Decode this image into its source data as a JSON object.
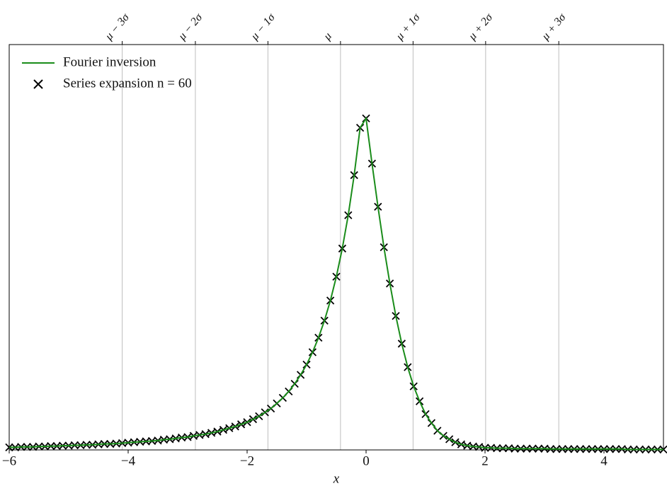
{
  "chart_data": {
    "type": "line_scatter",
    "xlabel": "x",
    "xlim": [
      -6,
      5
    ],
    "ylim": [
      0,
      0.95
    ],
    "xticks": [
      {
        "value": -6,
        "label": "−6"
      },
      {
        "value": -4,
        "label": "−4"
      },
      {
        "value": -2,
        "label": "−2"
      },
      0,
      2,
      4
    ],
    "top_ticks": [
      {
        "value": -4.1,
        "label": "μ − 3σ"
      },
      {
        "value": -2.87,
        "label": "μ − 2σ"
      },
      {
        "value": -1.65,
        "label": "μ − 1σ"
      },
      {
        "value": -0.43,
        "label": "μ"
      },
      {
        "value": 0.79,
        "label": "μ + 1σ"
      },
      {
        "value": 2.01,
        "label": "μ + 2σ"
      },
      {
        "value": 3.24,
        "label": "μ + 3σ"
      }
    ],
    "legend": "upper left",
    "x": [
      -6,
      -5.9,
      -5.8,
      -5.7,
      -5.6,
      -5.5,
      -5.4,
      -5.3,
      -5.2,
      -5.1,
      -5,
      -4.9,
      -4.8,
      -4.7,
      -4.6,
      -4.5,
      -4.4,
      -4.3,
      -4.2,
      -4.1,
      -4,
      -3.9,
      -3.8,
      -3.7,
      -3.6,
      -3.5,
      -3.4,
      -3.3,
      -3.2,
      -3.1,
      -3,
      -2.9,
      -2.8,
      -2.7,
      -2.6,
      -2.5,
      -2.4,
      -2.3,
      -2.2,
      -2.1,
      -2,
      -1.9,
      -1.8,
      -1.7,
      -1.6,
      -1.5,
      -1.4,
      -1.3,
      -1.2,
      -1.1,
      -1,
      -0.9,
      -0.8,
      -0.7,
      -0.6,
      -0.5,
      -0.4,
      -0.3,
      -0.2,
      -0.1,
      0,
      0.1,
      0.2,
      0.3,
      0.4,
      0.5,
      0.6,
      0.7,
      0.8,
      0.9,
      1,
      1.1,
      1.2,
      1.3,
      1.4,
      1.5,
      1.6,
      1.7,
      1.8,
      1.9,
      2,
      2.1,
      2.2,
      2.3,
      2.4,
      2.5,
      2.6,
      2.7,
      2.8,
      2.9,
      3,
      3.1,
      3.2,
      3.3,
      3.4,
      3.5,
      3.6,
      3.7,
      3.8,
      3.9,
      4,
      4.1,
      4.2,
      4.3,
      4.4,
      4.5,
      4.6,
      4.7,
      4.8,
      4.9,
      5
    ],
    "series": [
      {
        "name": "Fourier inversion",
        "kind": "line",
        "color": "#1a8c1a",
        "values": [
          0.006,
          0.006,
          0.007,
          0.007,
          0.007,
          0.008,
          0.008,
          0.009,
          0.009,
          0.01,
          0.01,
          0.011,
          0.011,
          0.012,
          0.012,
          0.013,
          0.014,
          0.014,
          0.015,
          0.016,
          0.017,
          0.018,
          0.019,
          0.02,
          0.021,
          0.022,
          0.024,
          0.025,
          0.027,
          0.029,
          0.03,
          0.033,
          0.035,
          0.037,
          0.04,
          0.043,
          0.047,
          0.051,
          0.055,
          0.06,
          0.065,
          0.072,
          0.079,
          0.088,
          0.097,
          0.109,
          0.122,
          0.137,
          0.155,
          0.176,
          0.2,
          0.229,
          0.263,
          0.303,
          0.35,
          0.406,
          0.472,
          0.55,
          0.644,
          0.755,
          0.777,
          0.671,
          0.57,
          0.475,
          0.39,
          0.314,
          0.249,
          0.194,
          0.149,
          0.114,
          0.084,
          0.063,
          0.045,
          0.033,
          0.025,
          0.018,
          0.013,
          0.01,
          0.008,
          0.007,
          0.005,
          0.005,
          0.004,
          0.004,
          0.004,
          0.003,
          0.003,
          0.003,
          0.003,
          0.003,
          0.003,
          0.002,
          0.002,
          0.002,
          0.002,
          0.002,
          0.002,
          0.002,
          0.002,
          0.002,
          0.002,
          0.002,
          0.002,
          0.002,
          0.001,
          0.001,
          0.001,
          0.001,
          0.001,
          0.001,
          0.001
        ]
      },
      {
        "name": "Series expansion n = 60",
        "kind": "scatter",
        "color": "#000000",
        "values": [
          0.006,
          0.006,
          0.007,
          0.007,
          0.007,
          0.008,
          0.008,
          0.009,
          0.009,
          0.01,
          0.01,
          0.011,
          0.011,
          0.012,
          0.012,
          0.013,
          0.014,
          0.014,
          0.015,
          0.016,
          0.017,
          0.018,
          0.019,
          0.02,
          0.021,
          0.022,
          0.024,
          0.025,
          0.027,
          0.029,
          0.03,
          0.033,
          0.035,
          0.037,
          0.04,
          0.043,
          0.047,
          0.051,
          0.055,
          0.06,
          0.065,
          0.072,
          0.079,
          0.088,
          0.097,
          0.109,
          0.122,
          0.137,
          0.155,
          0.176,
          0.2,
          0.229,
          0.263,
          0.303,
          0.35,
          0.406,
          0.472,
          0.55,
          0.644,
          0.755,
          0.777,
          0.671,
          0.57,
          0.475,
          0.39,
          0.314,
          0.249,
          0.194,
          0.149,
          0.114,
          0.084,
          0.063,
          0.045,
          0.033,
          0.025,
          0.018,
          0.013,
          0.01,
          0.008,
          0.007,
          0.005,
          0.005,
          0.004,
          0.004,
          0.004,
          0.003,
          0.003,
          0.003,
          0.003,
          0.003,
          0.003,
          0.002,
          0.002,
          0.002,
          0.002,
          0.002,
          0.002,
          0.002,
          0.002,
          0.002,
          0.002,
          0.002,
          0.002,
          0.002,
          0.001,
          0.001,
          0.001,
          0.001,
          0.001,
          0.001,
          0.001
        ]
      }
    ]
  }
}
